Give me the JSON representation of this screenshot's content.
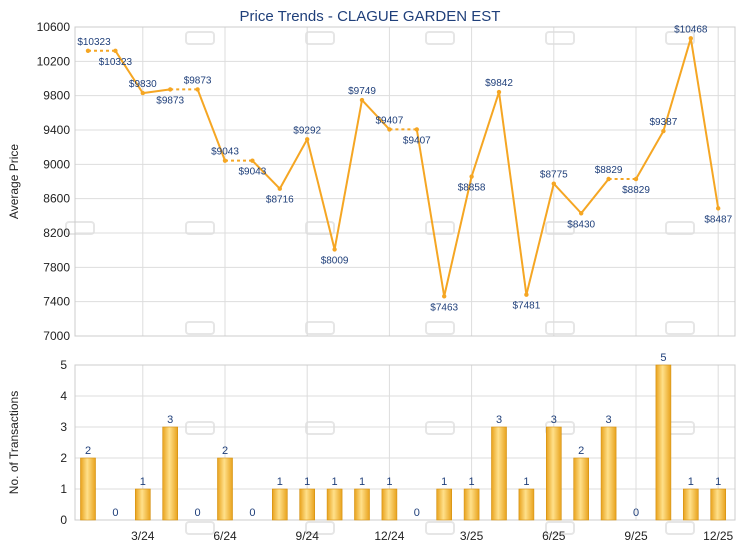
{
  "colors": {
    "title": "#1f3f7a",
    "line": "#f5a623",
    "dashed_line": "#f5a623",
    "bar_fill_light": "#ffe08a",
    "bar_fill_dark": "#e8a21c",
    "bar_stroke": "#d4900f",
    "grid": "#dddddd",
    "axis_text": "#222222",
    "price_label": "#1f3f7a",
    "count_label": "#1f3f7a",
    "watermark": "#e6e6e6"
  },
  "chart_data": [
    {
      "type": "line",
      "title": "Price Trends - CLAGUE GARDEN EST",
      "xlabel": "",
      "ylabel": "Average Price",
      "ylim": [
        7000,
        10600
      ],
      "yticks": [
        7000,
        7400,
        7800,
        8200,
        8600,
        9000,
        9400,
        9800,
        10200,
        10600
      ],
      "grid": true,
      "x_tick_labels": [
        "3/24",
        "6/24",
        "9/24",
        "12/24",
        "3/25",
        "6/25",
        "9/25",
        "12/25"
      ],
      "x_tick_index": [
        2,
        5,
        8,
        11,
        14,
        17,
        20,
        23
      ],
      "months": 24,
      "values": [
        10323,
        10323,
        9830,
        9873,
        9873,
        9043,
        9043,
        8716,
        9292,
        8009,
        9749,
        9407,
        9407,
        7463,
        8858,
        9842,
        7481,
        8775,
        8430,
        8829,
        8829,
        9387,
        10468,
        8487
      ],
      "value_labels": [
        "$10323",
        "$10323",
        "$9830",
        "$9873",
        "$9873",
        "$9043",
        "$9043",
        "$8716",
        "$9292",
        "$8009",
        "$9749",
        "$9407",
        "$9407",
        "$7463",
        "$8858",
        "$9842",
        "$7481",
        "$8775",
        "$8430",
        "$8829",
        "$8829",
        "$9387",
        "$10468",
        "$8487"
      ],
      "carried_forward": [
        false,
        true,
        false,
        false,
        true,
        false,
        true,
        false,
        false,
        false,
        false,
        false,
        true,
        false,
        false,
        false,
        false,
        false,
        false,
        false,
        true,
        false,
        false,
        false
      ]
    },
    {
      "type": "bar",
      "title": "",
      "xlabel": "",
      "ylabel": "No. of Transactions",
      "ylim": [
        0,
        5
      ],
      "yticks": [
        0,
        1,
        2,
        3,
        4,
        5
      ],
      "grid": true,
      "x_tick_labels": [
        "3/24",
        "6/24",
        "9/24",
        "12/24",
        "3/25",
        "6/25",
        "9/25",
        "12/25"
      ],
      "values": [
        2,
        0,
        1,
        3,
        0,
        2,
        0,
        1,
        1,
        1,
        1,
        1,
        0,
        1,
        1,
        3,
        1,
        3,
        2,
        3,
        0,
        5,
        1,
        1
      ]
    }
  ]
}
